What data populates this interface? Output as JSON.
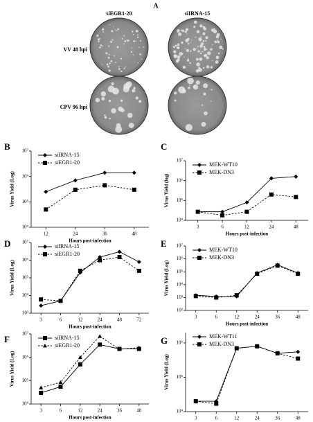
{
  "panel_a": {
    "letter": "A",
    "columns": [
      "siEGR1-20",
      "siIRNA-15"
    ],
    "rows": [
      "VV 48 hpi",
      "CPV 96 hpi"
    ]
  },
  "chart_data": [
    {
      "type": "line",
      "panel": "B",
      "y_label": "Virus Yield (Log)",
      "x_label": "Hours post-infection",
      "log_y": true,
      "legend": "top-left",
      "categories": [
        12,
        24,
        36,
        48
      ],
      "series": [
        {
          "name": "siIRNA-15",
          "color": "#000000",
          "marker": "diamond",
          "dash": false,
          "values": [
            250000,
            700000,
            1400000,
            1400000
          ]
        },
        {
          "name": "siEGR1-20",
          "color": "#000000",
          "marker": "square",
          "dash": true,
          "values": [
            50000,
            300000,
            450000,
            300000
          ]
        }
      ],
      "ylim": [
        10000,
        10000000
      ],
      "yticks": [
        {
          "value": 10000,
          "label": "10⁴"
        },
        {
          "value": 100000,
          "label": "10⁵"
        },
        {
          "value": 1000000,
          "label": "10⁶"
        },
        {
          "value": 10000000,
          "label": "10⁷"
        }
      ]
    },
    {
      "type": "line",
      "panel": "C",
      "y_label": "Virus Yield (log)",
      "x_label": "Hours post-infection",
      "log_y": true,
      "legend": "top-left",
      "categories": [
        3,
        6,
        12,
        24,
        48
      ],
      "series": [
        {
          "name": "MEK-WT10",
          "color": "#000000",
          "marker": "diamond",
          "dash": false,
          "values": [
            27000,
            27000,
            80000,
            1300000,
            1600000
          ]
        },
        {
          "name": "MEK-DN3",
          "color": "#000000",
          "marker": "square",
          "dash": true,
          "values": [
            27000,
            18000,
            27000,
            200000,
            150000
          ]
        }
      ],
      "ylim": [
        10000,
        10000000
      ],
      "yticks": [
        {
          "value": 10000,
          "label": "10⁴"
        },
        {
          "value": 100000,
          "label": "10⁵"
        },
        {
          "value": 1000000,
          "label": "10⁶"
        },
        {
          "value": 10000000,
          "label": "10⁷"
        }
      ]
    },
    {
      "type": "line",
      "panel": "D",
      "y_label": "Virus Yield (Log)",
      "x_label": "Hours post-infection",
      "log_y": true,
      "legend": "top-left",
      "categories": [
        3,
        6,
        12,
        24,
        48,
        72
      ],
      "series": [
        {
          "name": "siIRNA-15",
          "color": "#000000",
          "marker": "diamond",
          "dash": false,
          "values": [
            2700,
            5000,
            200000,
            1500000,
            3000000,
            800000
          ]
        },
        {
          "name": "siEGR1-20",
          "color": "#000000",
          "marker": "square",
          "dash": true,
          "values": [
            6000,
            5000,
            250000,
            1000000,
            1500000,
            250000
          ]
        }
      ],
      "ylim": [
        1000,
        10000000
      ],
      "yticks": [
        {
          "value": 1000,
          "label": "10³"
        },
        {
          "value": 10000,
          "label": "10⁴"
        },
        {
          "value": 100000,
          "label": "10⁵"
        },
        {
          "value": 1000000,
          "label": "10⁶"
        },
        {
          "value": 10000000,
          "label": "10⁷"
        }
      ]
    },
    {
      "type": "line",
      "panel": "E",
      "y_label": "Virus Yield (Log)",
      "x_label": "Hours post-infection",
      "log_y": true,
      "legend": "top-left",
      "categories": [
        3,
        6,
        12,
        24,
        36,
        48
      ],
      "series": [
        {
          "name": "MEK-WT10",
          "color": "#000000",
          "marker": "diamond",
          "dash": false,
          "values": [
            1500,
            1200,
            1200,
            80000,
            350000,
            80000
          ]
        },
        {
          "name": "MEK-DN3",
          "color": "#000000",
          "marker": "square",
          "dash": true,
          "values": [
            1300,
            1000,
            1500,
            70000,
            300000,
            70000
          ]
        }
      ],
      "ylim": [
        100,
        10000000
      ],
      "yticks": [
        {
          "value": 100,
          "label": "10²"
        },
        {
          "value": 1000,
          "label": "10³"
        },
        {
          "value": 10000,
          "label": "10⁴"
        },
        {
          "value": 100000,
          "label": "10⁵"
        },
        {
          "value": 1000000,
          "label": "10⁶"
        },
        {
          "value": 10000000,
          "label": "10⁷"
        }
      ]
    },
    {
      "type": "line",
      "panel": "F",
      "y_label": "Virus Yield (Log)",
      "x_label": "Hours post-infection",
      "log_y": true,
      "legend": "top-left",
      "categories": [
        3,
        6,
        12,
        24,
        36,
        48
      ],
      "series": [
        {
          "name": "siIRNA-15",
          "color": "#000000",
          "marker": "square",
          "dash": false,
          "values": [
            30000,
            55000,
            500000,
            3500000,
            2300000,
            2300000
          ]
        },
        {
          "name": "siEGR1-20",
          "color": "#000000",
          "marker": "triangle",
          "dash": true,
          "values": [
            50000,
            85000,
            1000000,
            8000000,
            2200000,
            2600000
          ]
        }
      ],
      "ylim": [
        10000,
        10000000
      ],
      "yticks": [
        {
          "value": 10000,
          "label": "10⁴"
        },
        {
          "value": 100000,
          "label": "10⁵"
        },
        {
          "value": 1000000,
          "label": "10⁶"
        },
        {
          "value": 10000000,
          "label": "10⁷"
        }
      ]
    },
    {
      "type": "line",
      "panel": "G",
      "y_label": "Virus Yield (Log)",
      "x_label": "Hours post-infection",
      "log_y": true,
      "legend": "top-left",
      "categories": [
        3,
        6,
        12,
        24,
        36,
        48
      ],
      "series": [
        {
          "name": "MEK-WT11",
          "color": "#000000",
          "marker": "diamond",
          "dash": false,
          "values": [
            20000,
            20000,
            700000,
            800000,
            500000,
            550000
          ]
        },
        {
          "name": "MEK-DN3",
          "color": "#000000",
          "marker": "square",
          "dash": true,
          "values": [
            20000,
            17000,
            700000,
            800000,
            500000,
            350000
          ]
        }
      ],
      "ylim": [
        10000,
        2000000
      ],
      "yticks": [
        {
          "value": 10000,
          "label": "10⁴"
        },
        {
          "value": 100000,
          "label": "10⁵"
        },
        {
          "value": 1000000,
          "label": "10⁶"
        }
      ]
    }
  ]
}
